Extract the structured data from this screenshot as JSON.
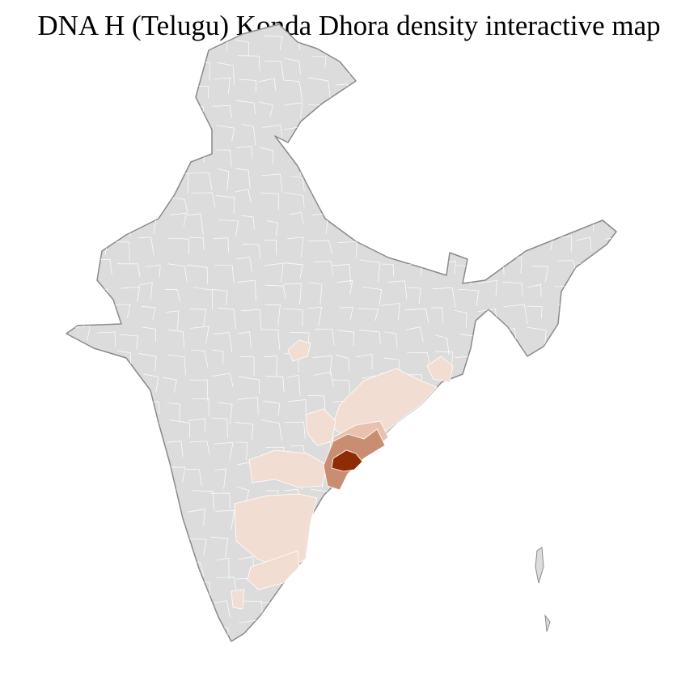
{
  "title": "DNA H (Telugu) Konda Dhora density interactive map",
  "colors": {
    "no_data": "#dcdcdc",
    "district_border": "#ffffff",
    "state_border": "#8a8a8a",
    "density_low": "#f2ddd2",
    "density_mid_low": "#e8c2ae",
    "density_mid": "#c98e72",
    "density_high": "#8e2c06"
  }
}
